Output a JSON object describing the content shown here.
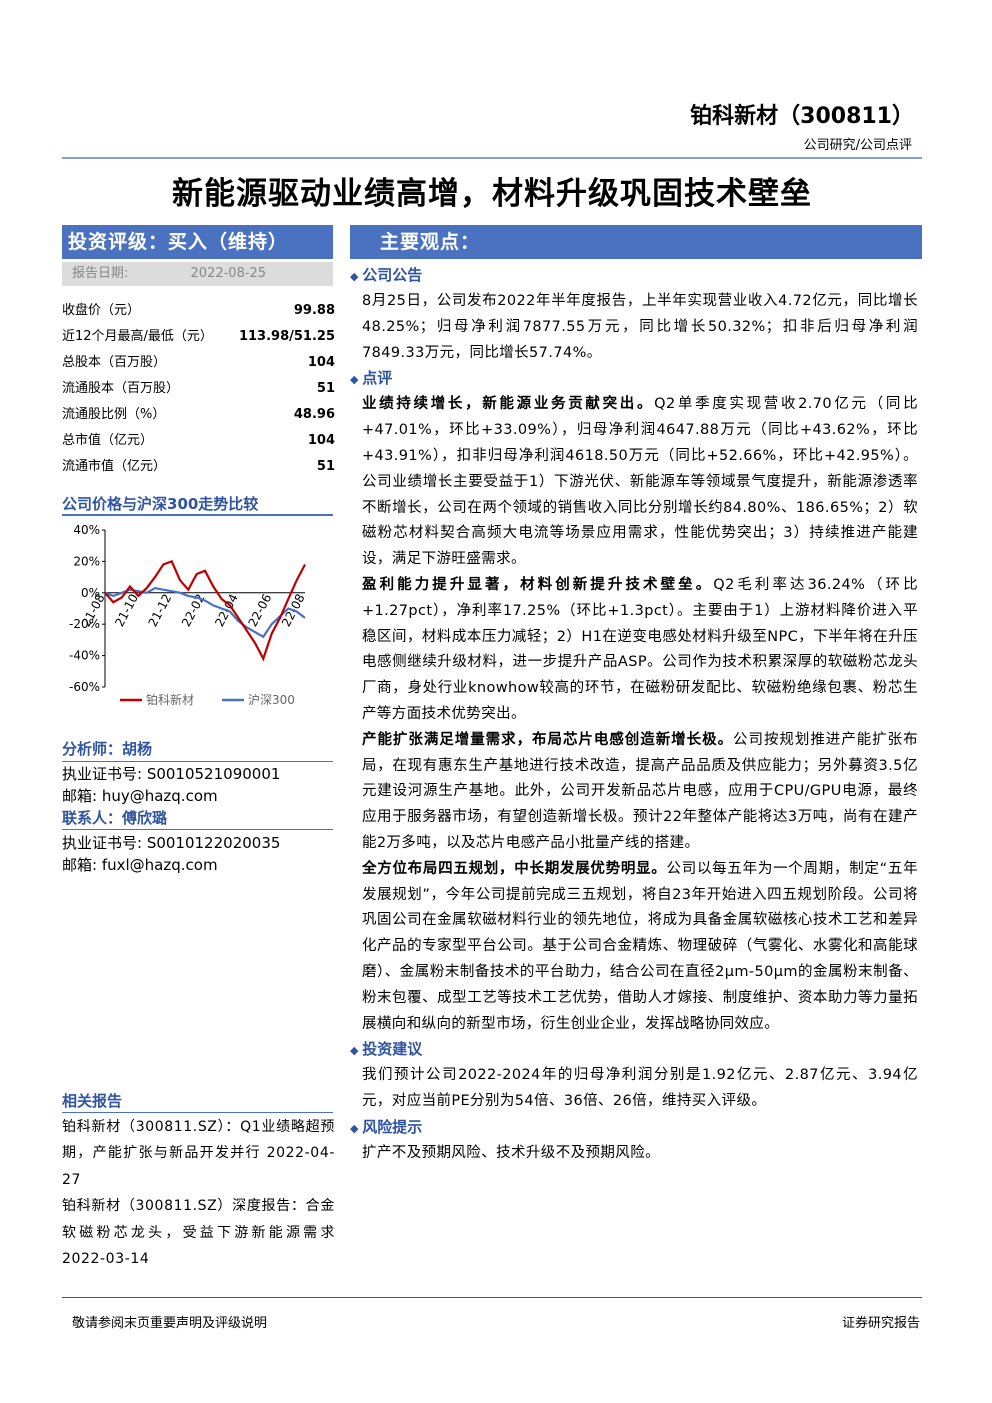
{
  "header": {
    "company": "铂科新材（300811）",
    "category": "公司研究/公司点评",
    "title": "新能源驱动业绩高增，材料升级巩固技术壁垒"
  },
  "rating": {
    "label": "投资评级：买入（维持）",
    "date_label": "报告日期:",
    "date": "2022-08-25"
  },
  "stats": [
    [
      "收盘价（元）",
      "99.88"
    ],
    [
      "近12个月最高/最低（元）",
      "113.98/51.25"
    ],
    [
      "总股本（百万股）",
      "104"
    ],
    [
      "流通股本（百万股）",
      "51"
    ],
    [
      "流通股比例（%）",
      "48.96"
    ],
    [
      "总市值（亿元）",
      "104"
    ],
    [
      "流通市值（亿元）",
      "51"
    ]
  ],
  "chart_data": {
    "type": "line",
    "title": "公司价格与沪深300走势比较",
    "categories": [
      "21-08",
      null,
      null,
      null,
      "21-10",
      null,
      null,
      null,
      "21-12",
      null,
      null,
      null,
      "22-02",
      null,
      null,
      null,
      "22-04",
      null,
      null,
      null,
      "22-06",
      null,
      null,
      null,
      "22-08"
    ],
    "series": [
      {
        "name": "铂科新材",
        "color": "#c00000",
        "values": [
          0,
          -6,
          -3,
          4,
          -2,
          3,
          10,
          18,
          20,
          8,
          2,
          12,
          14,
          4,
          -4,
          -8,
          -16,
          -24,
          -32,
          -42,
          -26,
          -16,
          -4,
          8,
          18
        ]
      },
      {
        "name": "沪深300",
        "color": "#4472c4",
        "values": [
          0,
          -2,
          0,
          2,
          1,
          0,
          3,
          2,
          1,
          0,
          -2,
          -3,
          -5,
          -8,
          -10,
          -12,
          -18,
          -22,
          -25,
          -28,
          -20,
          -15,
          -10,
          -12,
          -16
        ]
      }
    ],
    "ylim": [
      -60,
      40
    ],
    "yticks": [
      {
        "value": -60,
        "label": "-60%"
      },
      {
        "value": -40,
        "label": "-40%"
      },
      {
        "value": -20,
        "label": "-20%"
      },
      {
        "value": 0,
        "label": "0%"
      },
      {
        "value": 20,
        "label": "20%"
      },
      {
        "value": 40,
        "label": "40%"
      }
    ]
  },
  "analysts": {
    "analyst_label": "分析师：胡杨",
    "analyst_cert": "执业证书号: S0010521090001",
    "analyst_email": "邮箱: huy@hazq.com",
    "contact_label": "联系人：傅欣璐",
    "contact_cert": "执业证书号: S0010122020035",
    "contact_email": "邮箱: fuxl@hazq.com"
  },
  "related": {
    "title": "相关报告",
    "items": [
      {
        "text": "铂科新材（300811.SZ）：Q1业绩略超预期，产能扩张与新品开发并行",
        "date": "2022-04-27"
      },
      {
        "text": "铂科新材（300811.SZ）深度报告：合金软磁粉芯龙头，受益下游新能源需求",
        "date": "2022-03-14"
      }
    ]
  },
  "main": {
    "title": "主要观点：",
    "sections": [
      {
        "heading": "公司公告",
        "paragraphs": [
          {
            "lead": "",
            "body": "8月25日，公司发布2022年半年度报告，上半年实现营业收入4.72亿元，同比增长48.25%；归母净利润7877.55万元，同比增长50.32%；扣非后归母净利润7849.33万元，同比增长57.74%。"
          }
        ]
      },
      {
        "heading": "点评",
        "paragraphs": [
          {
            "lead": "业绩持续增长，新能源业务贡献突出。",
            "body": "Q2单季度实现营收2.70亿元（同比+47.01%，环比+33.09%），归母净利润4647.88万元（同比+43.62%，环比+43.91%），扣非归母净利润4618.50万元（同比+52.66%，环比+42.95%）。公司业绩增长主要受益于1）下游光伏、新能源车等领域景气度提升，新能源渗透率不断增长，公司在两个领域的销售收入同比分别增长约84.80%、186.65%；2）软磁粉芯材料契合高频大电流等场景应用需求，性能优势突出；3）持续推进产能建设，满足下游旺盛需求。"
          },
          {
            "lead": "盈利能力提升显著，材料创新提升技术壁垒。",
            "body": "Q2毛利率达36.24%（环比+1.27pct），净利率17.25%（环比+1.3pct）。主要由于1）上游材料降价进入平稳区间，材料成本压力减轻；2）H1在逆变电感处材料升级至NPC，下半年将在升压电感侧继续升级材料，进一步提升产品ASP。公司作为技术积累深厚的软磁粉芯龙头厂商，身处行业knowhow较高的环节，在磁粉研发配比、软磁粉绝缘包裹、粉芯生产等方面技术优势突出。"
          },
          {
            "lead": "产能扩张满足增量需求，布局芯片电感创造新增长极。",
            "body": "公司按规划推进产能扩张布局，在现有惠东生产基地进行技术改造，提高产品品质及供应能力；另外募资3.5亿元建设河源生产基地。此外，公司开发新品芯片电感，应用于CPU/GPU电源，最终应用于服务器市场，有望创造新增长极。预计22年整体产能将达3万吨，尚有在建产能2万多吨，以及芯片电感产品小批量产线的搭建。"
          },
          {
            "lead": "全方位布局四五规划，中长期发展优势明显。",
            "body": "公司以每五年为一个周期，制定“五年发展规划”，今年公司提前完成三五规划，将自23年开始进入四五规划阶段。公司将巩固公司在金属软磁材料行业的领先地位，将成为具备金属软磁核心技术工艺和差异化产品的专家型平台公司。基于公司合金精炼、物理破碎（气雾化、水雾化和高能球磨）、金属粉末制备技术的平台助力，结合公司在直径2μm-50μm的金属粉末制备、粉末包覆、成型工艺等技术工艺优势，借助人才嫁接、制度维护、资本助力等力量拓展横向和纵向的新型市场，衍生创业企业，发挥战略协同效应。"
          }
        ]
      },
      {
        "heading": "投资建议",
        "paragraphs": [
          {
            "lead": "",
            "body": "我们预计公司2022-2024年的归母净利润分别是1.92亿元、2.87亿元、3.94亿元，对应当前PE分别为54倍、36倍、26倍，维持买入评级。"
          }
        ]
      },
      {
        "heading": "风险提示",
        "paragraphs": [
          {
            "lead": "",
            "body": "扩产不及预期风险、技术升级不及预期风险。"
          }
        ]
      }
    ]
  },
  "footer": {
    "left": "敬请参阅末页重要声明及评级说明",
    "right": "证券研究报告"
  }
}
